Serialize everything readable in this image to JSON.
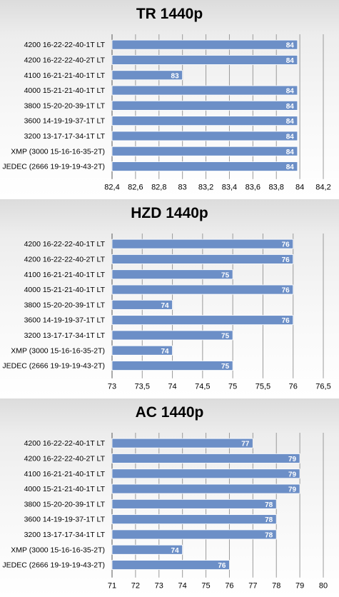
{
  "colors": {
    "bar": "#6c8fc7",
    "bar_edge": "#ffffff",
    "grid": "#9a9a9a",
    "value_label": "#ffffff"
  },
  "chart_data": [
    {
      "type": "bar",
      "orientation": "horizontal",
      "title": "TR 1440p",
      "categories": [
        "4200 16-22-22-40-1T LT",
        "4200 16-22-22-40-2T LT",
        "4100 16-21-21-40-1T LT",
        "4000 15-21-21-40-1T LT",
        "3800 15-20-20-39-1T LT",
        "3600 14-19-19-37-1T LT",
        "3200 13-17-17-34-1T LT",
        "XMP (3000 15-16-16-35-2T)",
        "JEDEC (2666 19-19-19-43-2T)"
      ],
      "values": [
        84,
        84,
        83,
        84,
        84,
        84,
        84,
        84,
        84
      ],
      "value_labels": [
        "84",
        "84",
        "83",
        "84",
        "84",
        "84",
        "84",
        "84",
        "84"
      ],
      "plot_values": [
        83.98,
        83.98,
        83.0,
        83.98,
        83.98,
        83.98,
        83.98,
        83.98,
        83.98
      ],
      "xlim": [
        82.4,
        84.2
      ],
      "ticks": [
        "82,4",
        "82,6",
        "82,8",
        "83",
        "83,2",
        "83,4",
        "83,6",
        "83,8",
        "84",
        "84,2"
      ],
      "grid": true,
      "legend": "none"
    },
    {
      "type": "bar",
      "orientation": "horizontal",
      "title": "HZD 1440p",
      "categories": [
        "4200 16-22-22-40-1T LT",
        "4200 16-22-22-40-2T LT",
        "4100 16-21-21-40-1T LT",
        "4000 15-21-21-40-1T LT",
        "3800 15-20-20-39-1T LT",
        "3600 14-19-19-37-1T LT",
        "3200 13-17-17-34-1T LT",
        "XMP (3000 15-16-16-35-2T)",
        "JEDEC (2666 19-19-19-43-2T)"
      ],
      "values": [
        76,
        76,
        75,
        76,
        74,
        76,
        75,
        74,
        75
      ],
      "value_labels": [
        "76",
        "76",
        "75",
        "76",
        "74",
        "76",
        "75",
        "74",
        "75"
      ],
      "plot_values": [
        76,
        76,
        75,
        76,
        74,
        76,
        75,
        74,
        75
      ],
      "xlim": [
        73,
        76.5
      ],
      "ticks": [
        "73",
        "73,5",
        "74",
        "74,5",
        "75",
        "75,5",
        "76",
        "76,5"
      ],
      "grid": true,
      "legend": "none"
    },
    {
      "type": "bar",
      "orientation": "horizontal",
      "title": "AC 1440p",
      "categories": [
        "4200 16-22-22-40-1T LT",
        "4200 16-22-22-40-2T LT",
        "4100 16-21-21-40-1T LT",
        "4000 15-21-21-40-1T LT",
        "3800 15-20-20-39-1T LT",
        "3600 14-19-19-37-1T LT",
        "3200 13-17-17-34-1T LT",
        "XMP (3000 15-16-16-35-2T)",
        "JEDEC (2666 19-19-19-43-2T)"
      ],
      "values": [
        77,
        79,
        79,
        79,
        78,
        78,
        78,
        74,
        76
      ],
      "value_labels": [
        "77",
        "79",
        "79",
        "79",
        "78",
        "78",
        "78",
        "74",
        "76"
      ],
      "plot_values": [
        77,
        79,
        79,
        79,
        78,
        78,
        78,
        74,
        76
      ],
      "xlim": [
        71,
        80
      ],
      "ticks": [
        "71",
        "72",
        "73",
        "74",
        "75",
        "76",
        "77",
        "78",
        "79",
        "80"
      ],
      "grid": true,
      "legend": "none"
    }
  ]
}
